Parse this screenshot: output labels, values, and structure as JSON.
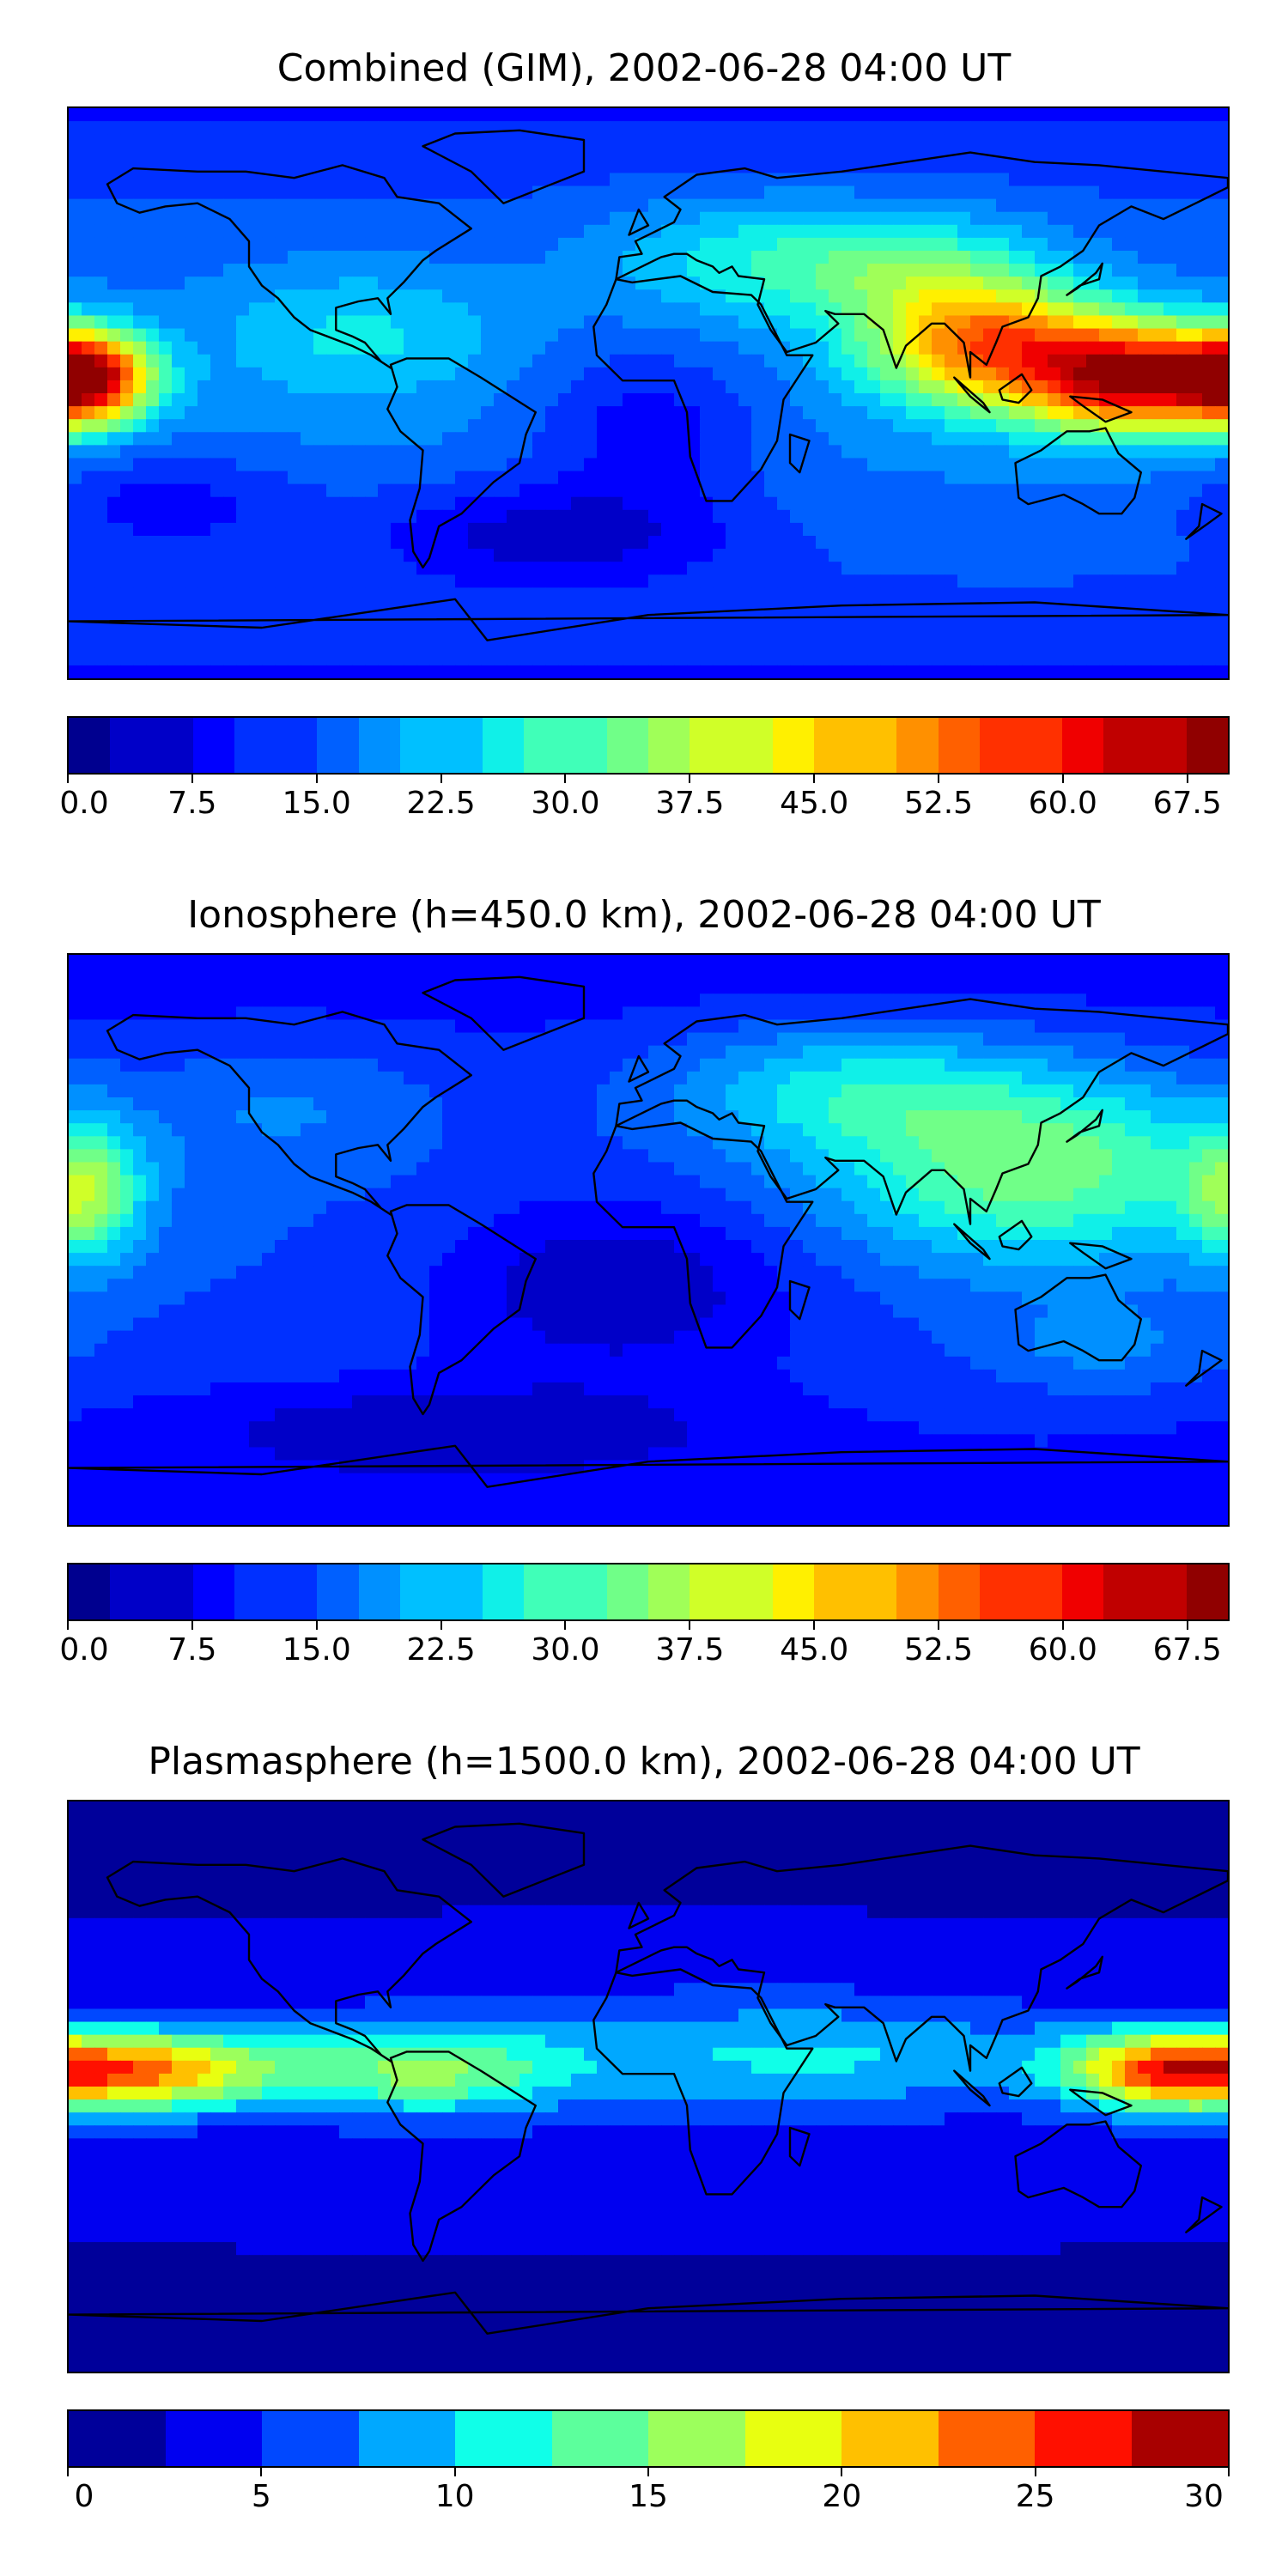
{
  "colors": {
    "jet16": [
      "#00008f",
      "#0000c8",
      "#0000ff",
      "#0030ff",
      "#0060ff",
      "#0090ff",
      "#00c0ff",
      "#10f0e8",
      "#40ffb8",
      "#70ff88",
      "#a0ff58",
      "#d0ff28",
      "#fff000",
      "#ffc000",
      "#ff9000",
      "#ff6000",
      "#ff3000",
      "#f00000",
      "#c00000",
      "#900000"
    ],
    "jet12": [
      "#00009a",
      "#0000f0",
      "#0048ff",
      "#00a8ff",
      "#10ffe8",
      "#5cff9c",
      "#9cff5c",
      "#e8ff10",
      "#ffc000",
      "#ff6000",
      "#ff1000",
      "#a80000"
    ],
    "coast": "#000000"
  },
  "chart_data": [
    {
      "type": "heatmap",
      "id": "combined",
      "title": "Combined (GIM), 2002-06-28 04:00 UT",
      "colorbar": {
        "vmin": 0.0,
        "vmax": 70.0,
        "levels": 28,
        "ticks": [
          0.0,
          7.5,
          15.0,
          22.5,
          30.0,
          37.5,
          45.0,
          52.5,
          60.0,
          67.5
        ],
        "tick_labels": [
          "0.0",
          "7.5",
          "15.0",
          "22.5",
          "30.0",
          "37.5",
          "45.0",
          "52.5",
          "60.0",
          "67.5"
        ]
      },
      "background_value": 18,
      "features": [
        {
          "lon": -175,
          "lat": 5,
          "value": 66,
          "slon": 14,
          "slat": 10
        },
        {
          "lon": 150,
          "lat": 5,
          "value": 64,
          "slon": 22,
          "slat": 12
        },
        {
          "lon": 105,
          "lat": 15,
          "value": 52,
          "slon": 25,
          "slat": 14
        },
        {
          "lon": 80,
          "lat": 40,
          "value": 34,
          "slon": 30,
          "slat": 14
        },
        {
          "lon": 25,
          "lat": 45,
          "value": 28,
          "slon": 30,
          "slat": 14
        },
        {
          "lon": -90,
          "lat": 20,
          "value": 26,
          "slon": 30,
          "slat": 15
        },
        {
          "lon": -30,
          "lat": -45,
          "value": 6,
          "slon": 40,
          "slat": 12
        },
        {
          "lon": 0,
          "lat": -10,
          "value": 9,
          "slon": 25,
          "slat": 18
        },
        {
          "lon": -150,
          "lat": -35,
          "value": 10,
          "slon": 30,
          "slat": 12
        }
      ]
    },
    {
      "type": "heatmap",
      "id": "ionosphere",
      "title": "Ionosphere  (h=450.0 km), 2002-06-28 04:00 UT",
      "colorbar": {
        "vmin": 0.0,
        "vmax": 70.0,
        "levels": 28,
        "ticks": [
          0.0,
          7.5,
          15.0,
          22.5,
          30.0,
          37.5,
          45.0,
          52.5,
          60.0,
          67.5
        ],
        "tick_labels": [
          "0.0",
          "7.5",
          "15.0",
          "22.5",
          "30.0",
          "37.5",
          "45.0",
          "52.5",
          "60.0",
          "67.5"
        ]
      },
      "background_value": 14,
      "features": [
        {
          "lon": 120,
          "lat": 25,
          "value": 35,
          "slon": 45,
          "slat": 22
        },
        {
          "lon": -175,
          "lat": 15,
          "value": 34,
          "slon": 12,
          "slat": 15
        },
        {
          "lon": 60,
          "lat": 50,
          "value": 28,
          "slon": 40,
          "slat": 15
        },
        {
          "lon": -110,
          "lat": 45,
          "value": 20,
          "slon": 30,
          "slat": 15
        },
        {
          "lon": -10,
          "lat": -15,
          "value": 4,
          "slon": 40,
          "slat": 20
        },
        {
          "lon": -60,
          "lat": -60,
          "value": 5,
          "slon": 60,
          "slat": 10
        },
        {
          "lon": 140,
          "lat": -35,
          "value": 20,
          "slon": 25,
          "slat": 10
        }
      ]
    },
    {
      "type": "heatmap",
      "id": "plasmasphere",
      "title": "Plasmasphere (h=1500.0 km), 2002-06-28 04:00 UT",
      "colorbar": {
        "vmin": 0,
        "vmax": 30,
        "levels": 12,
        "ticks": [
          0,
          5,
          10,
          15,
          20,
          25,
          30
        ],
        "tick_labels": [
          "0",
          "5",
          "10",
          "15",
          "20",
          "25",
          "30"
        ]
      },
      "background_value": 3,
      "features": [
        {
          "lon": -155,
          "lat": 5,
          "value": 21,
          "slon": 30,
          "slat": 9
        },
        {
          "lon": 160,
          "lat": 5,
          "value": 20,
          "slon": 22,
          "slat": 9
        },
        {
          "lon": -70,
          "lat": 5,
          "value": 13,
          "slon": 30,
          "slat": 10
        },
        {
          "lon": 60,
          "lat": 10,
          "value": 8,
          "slon": 60,
          "slat": 12
        },
        {
          "lon": 0,
          "lat": 10,
          "value": 6,
          "slon": 90,
          "slat": 18
        }
      ]
    }
  ]
}
